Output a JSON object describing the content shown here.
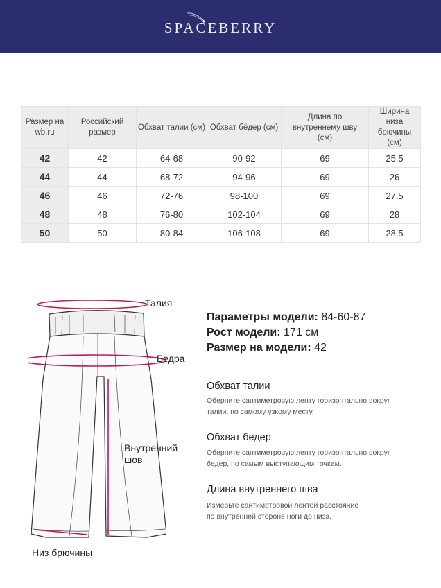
{
  "brand": {
    "logo_text": "SPACEBERRY",
    "bg_color": "#2c2d6e"
  },
  "size_table": {
    "headers": [
      "Размер на wb.ru",
      "Российский размер",
      "Обхват талии (см)",
      "Обхват бёдер (см)",
      "Длина по внутреннему шву (см)",
      "Ширина низа брючины (см)"
    ],
    "rows": [
      [
        "42",
        "42",
        "64-68",
        "90-92",
        "69",
        "25,5"
      ],
      [
        "44",
        "44",
        "68-72",
        "94-96",
        "69",
        "26"
      ],
      [
        "46",
        "46",
        "72-76",
        "98-100",
        "69",
        "27,5"
      ],
      [
        "48",
        "48",
        "76-80",
        "102-104",
        "69",
        "28"
      ],
      [
        "50",
        "50",
        "80-84",
        "106-108",
        "69",
        "28,5"
      ]
    ]
  },
  "diagram": {
    "labels": {
      "waist": "Талия",
      "hips": "Бедра",
      "inseam": "Внутренний шов",
      "hem": "Низ брючины"
    },
    "accent_color": "#c2185b"
  },
  "model": {
    "params_label": "Параметры модели:",
    "params_value": "84-60-87",
    "height_label": "Рост модели:",
    "height_value": "171 см",
    "size_label": "Размер на модели:",
    "size_value": "42"
  },
  "instructions": [
    {
      "title": "Обхват талии",
      "line1": "Оберните сантиметровую ленту горизонтально вокруг",
      "line2": "талии, по самому узкому месту."
    },
    {
      "title": "Обхват бедер",
      "line1": "Оберните сантиметровую ленту горизонтально вокруг",
      "line2": "бедер, по самым выступающим точкам."
    },
    {
      "title": "Длина внутреннего шва",
      "line1": "Измерьте сантиметровой лентой расстояние",
      "line2": "по внутренней стороне ноги до низа."
    }
  ]
}
